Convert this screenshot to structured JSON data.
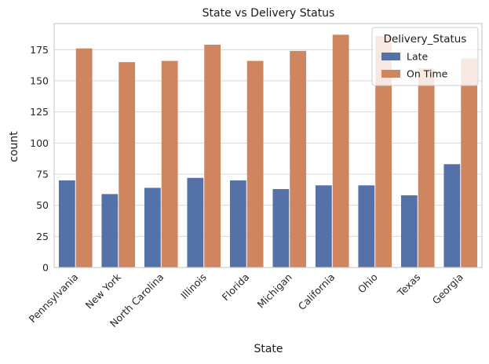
{
  "chart_data": {
    "type": "bar",
    "title": "State vs Delivery Status",
    "xlabel": "State",
    "ylabel": "count",
    "categories": [
      "Pennsylvania",
      "New York",
      "North Carolina",
      "Illinois",
      "Florida",
      "Michigan",
      "California",
      "Ohio",
      "Texas",
      "Georgia"
    ],
    "series": [
      {
        "name": "Late",
        "color": "#5572a8",
        "values": [
          70,
          59,
          64,
          72,
          70,
          63,
          66,
          66,
          58,
          83
        ]
      },
      {
        "name": "On Time",
        "color": "#cf8660",
        "values": [
          176,
          165,
          166,
          179,
          166,
          174,
          187,
          186,
          160,
          168
        ]
      }
    ],
    "yticks": [
      0,
      25,
      50,
      75,
      100,
      125,
      150,
      175
    ],
    "ylim": [
      0,
      196
    ],
    "grid": true,
    "legend": {
      "title": "Delivery_Status",
      "placement": "top-right"
    }
  }
}
